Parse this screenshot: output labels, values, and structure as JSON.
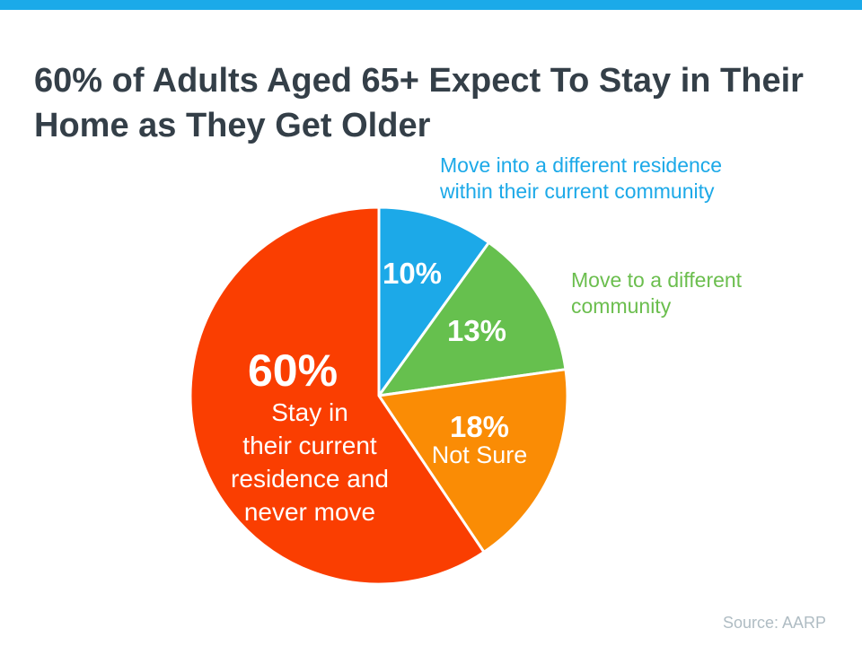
{
  "accent": {
    "top_bar_color": "#1BAAE9"
  },
  "title": {
    "text": "60% of Adults Aged 65+ Expect To Stay in Their Home as They Get Older",
    "color": "#343F48"
  },
  "source": {
    "text": "Source: AARP",
    "color": "#AFBCC3"
  },
  "chart_data": {
    "type": "pie",
    "title": "60% of Adults Aged 65+ Expect To Stay in Their Home as They Get Older",
    "start_angle_deg": 0,
    "direction": "clockwise",
    "legend_position": "callouts-outside-right",
    "source": "Source: AARP",
    "slices": [
      {
        "label": "Move into a different residence within their current community",
        "value": 10,
        "display": "10%",
        "color": "#1CA9E8",
        "callout_lines": [
          "Move into a different residence",
          "within their current community"
        ],
        "callout_color": "#1CA9E8"
      },
      {
        "label": "Move to a different community",
        "value": 13,
        "display": "13%",
        "color": "#66C04E",
        "callout_lines": [
          "Move to a different",
          "community"
        ],
        "callout_color": "#6BBE4E"
      },
      {
        "label": "Not Sure",
        "value": 18,
        "display": "18%",
        "color": "#FA8C05",
        "on_slice_sub": "Not Sure"
      },
      {
        "label": "Stay in their current residence and never move",
        "value": 60,
        "display": "60%",
        "color": "#FA3E01",
        "on_slice_lines": [
          "Stay in",
          "their current",
          "residence and",
          "never move"
        ]
      }
    ]
  }
}
